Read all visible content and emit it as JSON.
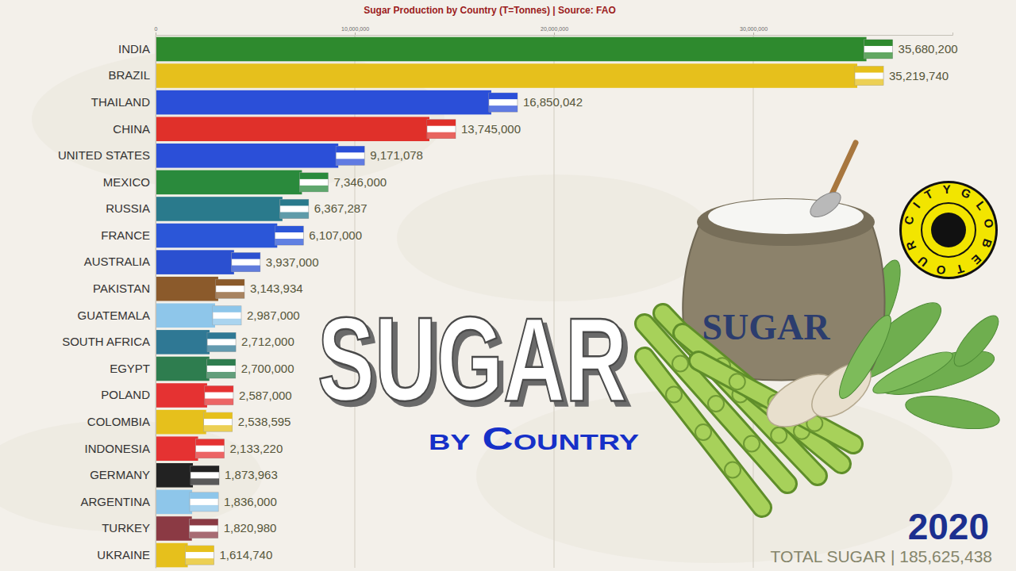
{
  "chart_data": {
    "type": "bar",
    "orientation": "horizontal",
    "title": "Sugar Production by Country (T=Tonnes) | Source: FAO",
    "categories": [
      "INDIA",
      "BRAZIL",
      "THAILAND",
      "CHINA",
      "UNITED STATES",
      "MEXICO",
      "RUSSIA",
      "FRANCE",
      "AUSTRALIA",
      "PAKISTAN",
      "GUATEMALA",
      "SOUTH AFRICA",
      "EGYPT",
      "POLAND",
      "COLOMBIA",
      "INDONESIA",
      "GERMANY",
      "ARGENTINA",
      "TURKEY",
      "UKRAINE"
    ],
    "values": [
      35680200,
      35219740,
      16850042,
      13745000,
      9171078,
      7346000,
      6367287,
      6107000,
      3937000,
      3143934,
      2987000,
      2712000,
      2700000,
      2587000,
      2538595,
      2133220,
      1873963,
      1836000,
      1820980,
      1614740
    ],
    "value_labels": [
      "35,680,200",
      "35,219,740",
      "16,850,042",
      "13,745,000",
      "9,171,078",
      "7,346,000",
      "6,367,287",
      "6,107,000",
      "3,937,000",
      "3,143,934",
      "2,987,000",
      "2,712,000",
      "2,700,000",
      "2,587,000",
      "2,538,595",
      "2,133,220",
      "1,873,963",
      "1,836,000",
      "1,820,980",
      "1,614,740"
    ],
    "colors": [
      "#2e8a2e",
      "#e6c01c",
      "#2b4fd8",
      "#e0302a",
      "#2b4fd8",
      "#2a8a3c",
      "#2a7a8c",
      "#2b56d8",
      "#2b50d0",
      "#8b5a2b",
      "#8ec6ea",
      "#2f7894",
      "#2e7d4f",
      "#e53232",
      "#e6c01c",
      "#e53232",
      "#222222",
      "#8ec6ea",
      "#8b3a44",
      "#e6c01c"
    ],
    "xlim": [
      0,
      40000000
    ],
    "xticks": [
      0,
      {
        "value": 10000000,
        "label": "10,000,000"
      },
      {
        "value": 20000000,
        "label": "20,000,000"
      },
      {
        "value": 30000000,
        "label": "30,000,000"
      }
    ],
    "grid": true,
    "data_labels": true,
    "annotations": {
      "headline": "SUGAR",
      "subheadline": "by Country",
      "sack_label": "SUGAR",
      "logo": "CITYGLOBETOUR",
      "year": "2020",
      "total": "TOTAL SUGAR | 185,625,438"
    }
  }
}
